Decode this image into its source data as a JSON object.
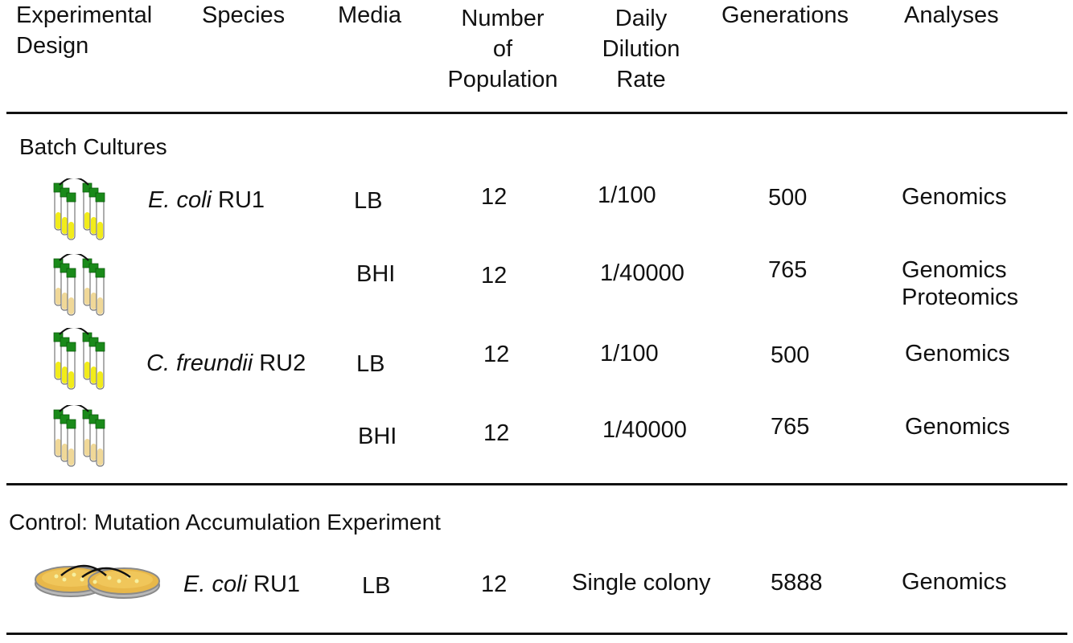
{
  "colors": {
    "cap": "#1a8a1a",
    "tube": "#ffffff",
    "liquid_yellow": "#f2ec1a",
    "liquid_beige": "#f0d898",
    "plate_rim": "#9a9a9a",
    "plate_agar": "#e8b84a"
  },
  "headers": {
    "experimental_design": [
      "Experimental",
      "Design"
    ],
    "species": "Species",
    "media": "Media",
    "number_of_population": [
      "Number",
      "of",
      "Population"
    ],
    "daily_dilution_rate": [
      "Daily",
      "Dilution",
      "Rate"
    ],
    "generations": "Generations",
    "analyses": "Analyses"
  },
  "sections": [
    {
      "title": "Batch Cultures",
      "rows": [
        {
          "icon": "test-tubes-yellow-icon",
          "species_italic": "E. coli",
          "species_strain": " RU1",
          "media": "LB",
          "populations": "12",
          "dilution": "1/100",
          "generations": "500",
          "analyses": [
            "Genomics"
          ]
        },
        {
          "icon": "test-tubes-beige-icon",
          "species_italic": "",
          "species_strain": "",
          "media": "BHI",
          "populations": "12",
          "dilution": "1/40000",
          "generations": "765",
          "analyses": [
            "Genomics",
            "Proteomics"
          ]
        },
        {
          "icon": "test-tubes-yellow-icon",
          "species_italic": "C. freundii",
          "species_strain": " RU2",
          "media": "LB",
          "populations": "12",
          "dilution": "1/100",
          "generations": "500",
          "analyses": [
            "Genomics"
          ]
        },
        {
          "icon": "test-tubes-beige-icon",
          "species_italic": "",
          "species_strain": "",
          "media": "BHI",
          "populations": "12",
          "dilution": "1/40000",
          "generations": "765",
          "analyses": [
            "Genomics"
          ]
        }
      ]
    },
    {
      "title": "Control: Mutation Accumulation Experiment",
      "rows": [
        {
          "icon": "petri-dishes-icon",
          "species_italic": "E. coli",
          "species_strain": " RU1",
          "media": "LB",
          "populations": "12",
          "dilution": "Single colony",
          "generations": "5888",
          "analyses": [
            "Genomics"
          ]
        }
      ]
    }
  ]
}
